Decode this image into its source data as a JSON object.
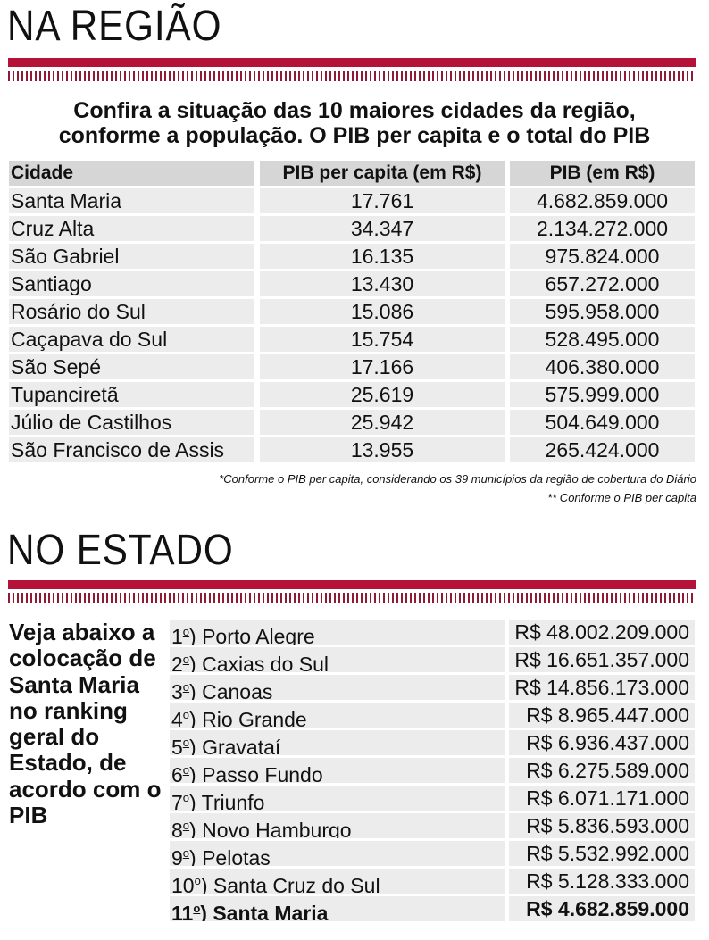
{
  "region": {
    "title": "NA REGIÃO",
    "intro_line1": "Confira a situação das 10 maiores cidades da região,",
    "intro_line2": "conforme a população. O PIB per capita e o total do PIB",
    "headers": [
      "Cidade",
      "PIB per capita (em R$)",
      "PIB (em R$)"
    ],
    "rows": [
      [
        "Santa Maria",
        "17.761",
        "4.682.859.000"
      ],
      [
        "Cruz Alta",
        "34.347",
        "2.134.272.000"
      ],
      [
        "São Gabriel",
        "16.135",
        "975.824.000"
      ],
      [
        "Santiago",
        "13.430",
        "657.272.000"
      ],
      [
        "Rosário do Sul",
        "15.086",
        "595.958.000"
      ],
      [
        "Caçapava do Sul",
        "15.754",
        "528.495.000"
      ],
      [
        "São Sepé",
        "17.166",
        "406.380.000"
      ],
      [
        "Tupanciretã",
        "25.619",
        "575.999.000"
      ],
      [
        "Júlio de Castilhos",
        "25.942",
        "504.649.000"
      ],
      [
        "São Francisco de Assis",
        "13.955",
        "265.424.000"
      ]
    ],
    "note1": "*Conforme o PIB per capita, considerando os 39 municípios da região de cobertura do Diário",
    "note2": "** Conforme o PIB per capita"
  },
  "state": {
    "title": "NO ESTADO",
    "side_text": "Veja abaixo a colocação de Santa Maria no ranking geral do Estado, de acordo com o PIB",
    "rows": [
      [
        "1",
        "Porto Alegre",
        "R$ 48.002.209.000"
      ],
      [
        "2",
        "Caxias do Sul",
        "R$ 16.651.357.000"
      ],
      [
        "3",
        "Canoas",
        "R$ 14.856.173.000"
      ],
      [
        "4",
        "Rio Grande",
        "R$ 8.965.447.000"
      ],
      [
        "5",
        "Gravataí",
        "R$ 6.936.437.000"
      ],
      [
        "6",
        "Passo Fundo",
        "R$ 6.275.589.000"
      ],
      [
        "7",
        "Triunfo",
        "R$ 6.071.171.000"
      ],
      [
        "8",
        "Novo Hamburgo",
        "R$ 5.836.593.000"
      ],
      [
        "9",
        "Pelotas",
        "R$ 5.532.992.000"
      ],
      [
        "10",
        "Santa Cruz do Sul",
        "R$ 5.128.333.000"
      ],
      [
        "11",
        "Santa Maria",
        "R$ 4.682.859.000"
      ]
    ],
    "ordinal": "o"
  },
  "colors": {
    "accent": "#b5123a"
  }
}
